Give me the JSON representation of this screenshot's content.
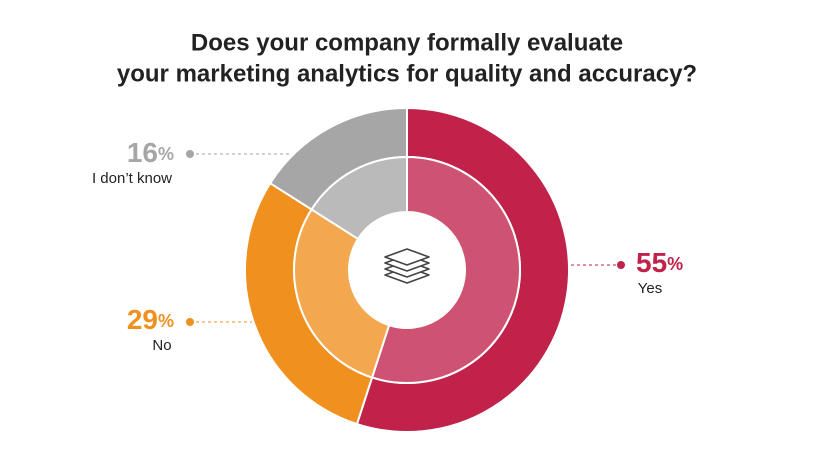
{
  "chart_data": {
    "type": "pie",
    "title": [
      "Does your company formally evaluate",
      "your marketing analytics for quality and accuracy?"
    ],
    "categories": [
      "Yes",
      "No",
      "I don’t know"
    ],
    "values": [
      55,
      29,
      16
    ],
    "value_labels": [
      "55%",
      "29%",
      "16%"
    ],
    "colors": [
      "#c0224a",
      "#f0901e",
      "#a6a6a6"
    ]
  }
}
